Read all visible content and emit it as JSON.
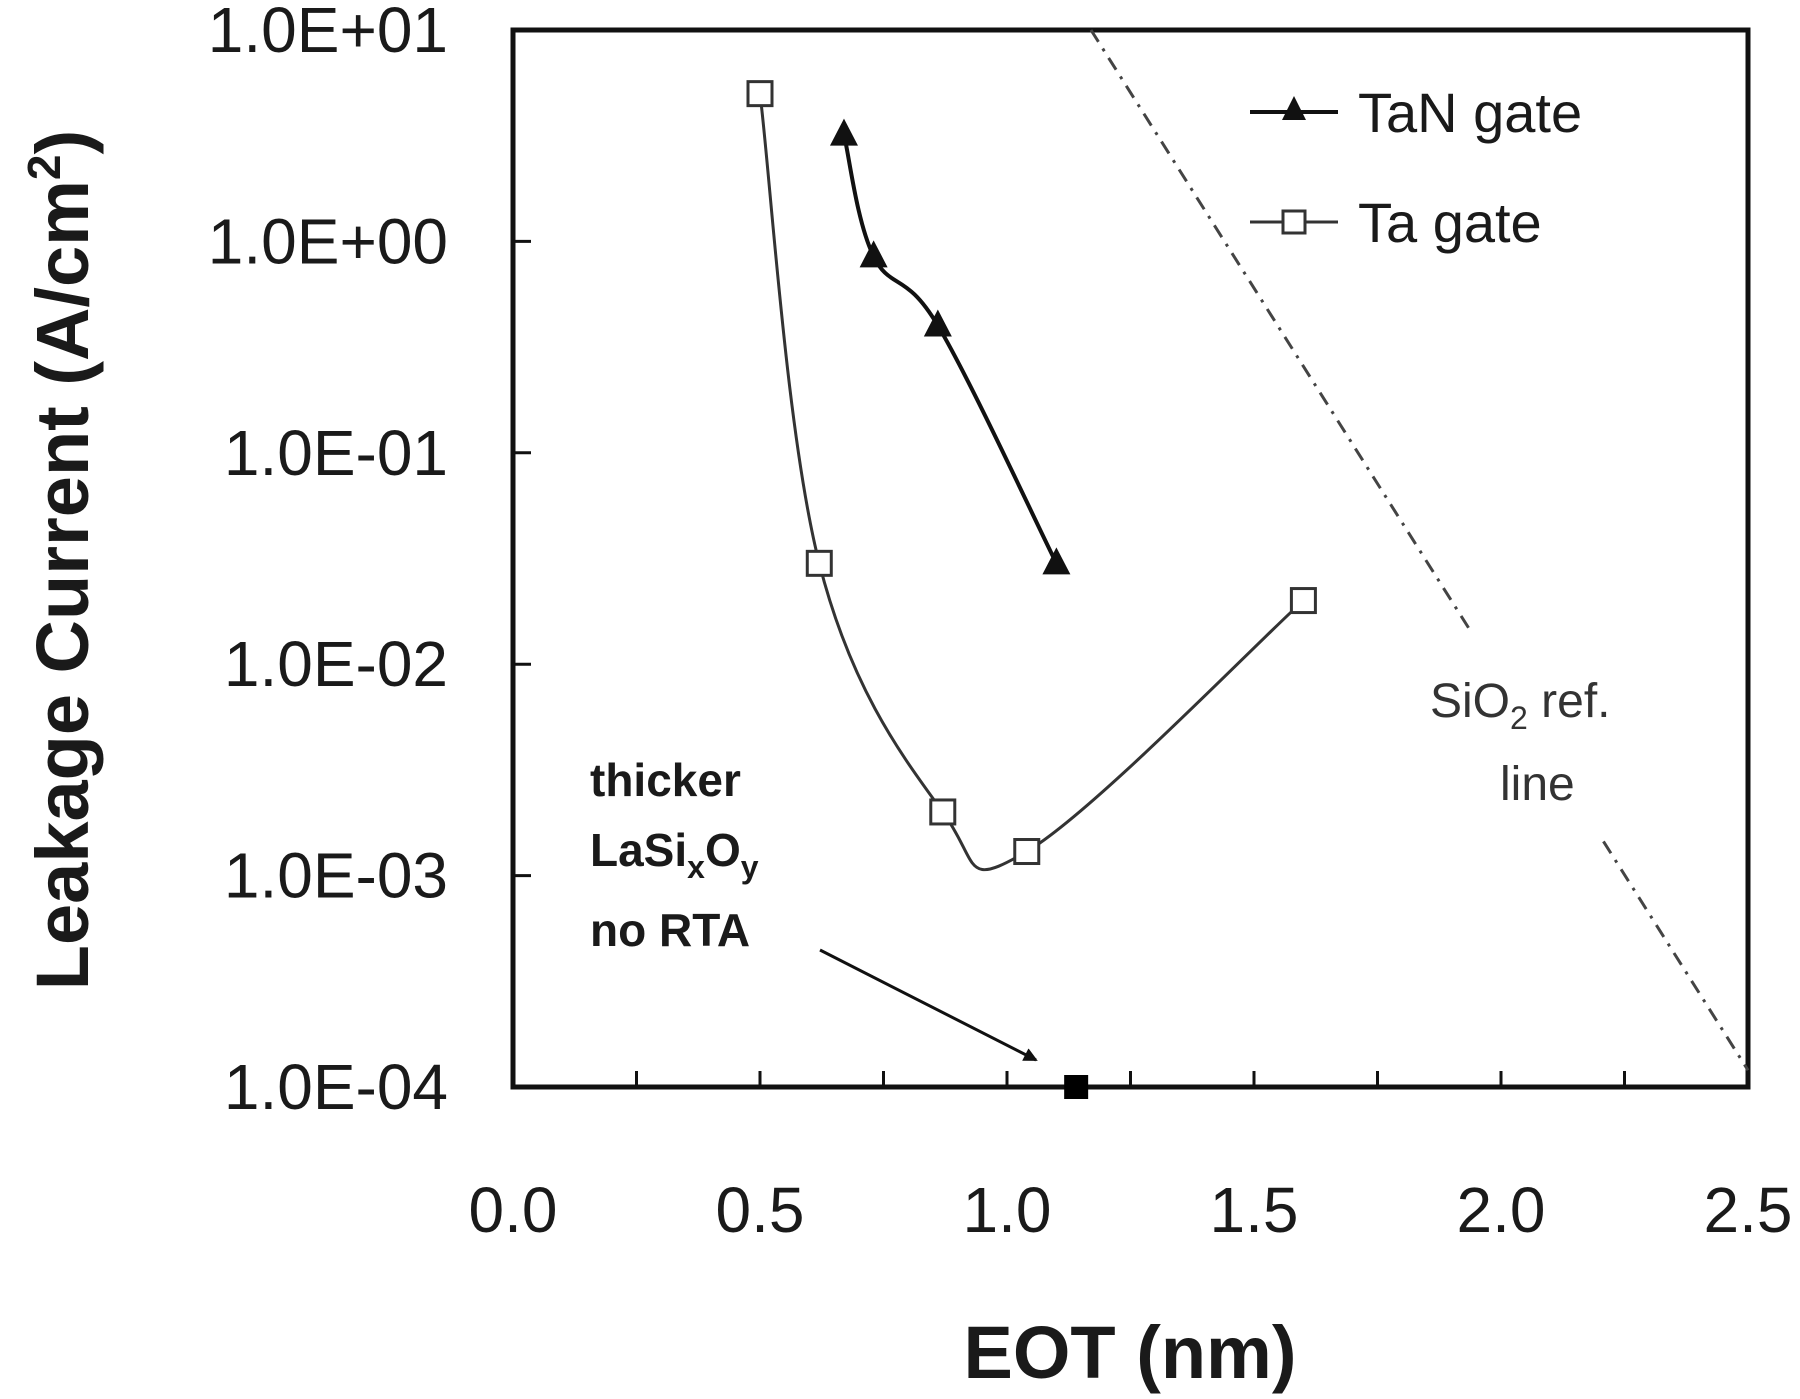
{
  "chart_data": {
    "type": "line",
    "xlabel": "EOT (nm)",
    "ylabel": "Leakage Current (A/cm",
    "ylabel_sup": "2",
    "ylabel_close": ")",
    "xlim": [
      0.0,
      2.5
    ],
    "ylim": [
      0.0001,
      10
    ],
    "yscale": "log",
    "x_ticks": [
      0.0,
      0.5,
      1.0,
      1.5,
      2.0,
      2.5
    ],
    "x_tick_labels": [
      "0.0",
      "0.5",
      "1.0",
      "1.5",
      "2.0",
      "2.5"
    ],
    "y_ticks": [
      10,
      1,
      0.1,
      0.01,
      0.001,
      0.0001
    ],
    "y_tick_labels": [
      "1.0E+01",
      "1.0E+00",
      "1.0E-01",
      "1.0E-02",
      "1.0E-03",
      "1.0E-04"
    ],
    "grid": false,
    "legend_position": "top-right",
    "series": [
      {
        "name": "TaN gate",
        "marker": "filled-triangle",
        "color": "#111111",
        "x": [
          0.67,
          0.73,
          0.86,
          1.1
        ],
        "y": [
          3.2,
          0.85,
          0.4,
          0.03
        ]
      },
      {
        "name": "Ta gate",
        "marker": "open-square",
        "color": "#333333",
        "x": [
          0.5,
          0.62,
          0.87,
          1.04,
          1.6
        ],
        "y": [
          5.0,
          0.03,
          0.002,
          0.0013,
          0.02
        ]
      }
    ],
    "single_point": {
      "marker": "filled-square",
      "color": "#000000",
      "x": 1.14,
      "y": 0.0001
    },
    "reference_line": {
      "style": "dash-dot",
      "x": [
        1.17,
        2.5
      ],
      "y": [
        10,
        0.00012
      ]
    },
    "annotations": {
      "thicker_line1": "thicker",
      "thicker_line2_base": "LaSi",
      "thicker_line2_sub1": "x",
      "thicker_line2_mid": "O",
      "thicker_line2_sub2": "y",
      "thicker_line3": "no RTA",
      "ref_line1_base": "SiO",
      "ref_line1_sub": "2",
      "ref_line1_tail": " ref.",
      "ref_line2": "line"
    }
  }
}
